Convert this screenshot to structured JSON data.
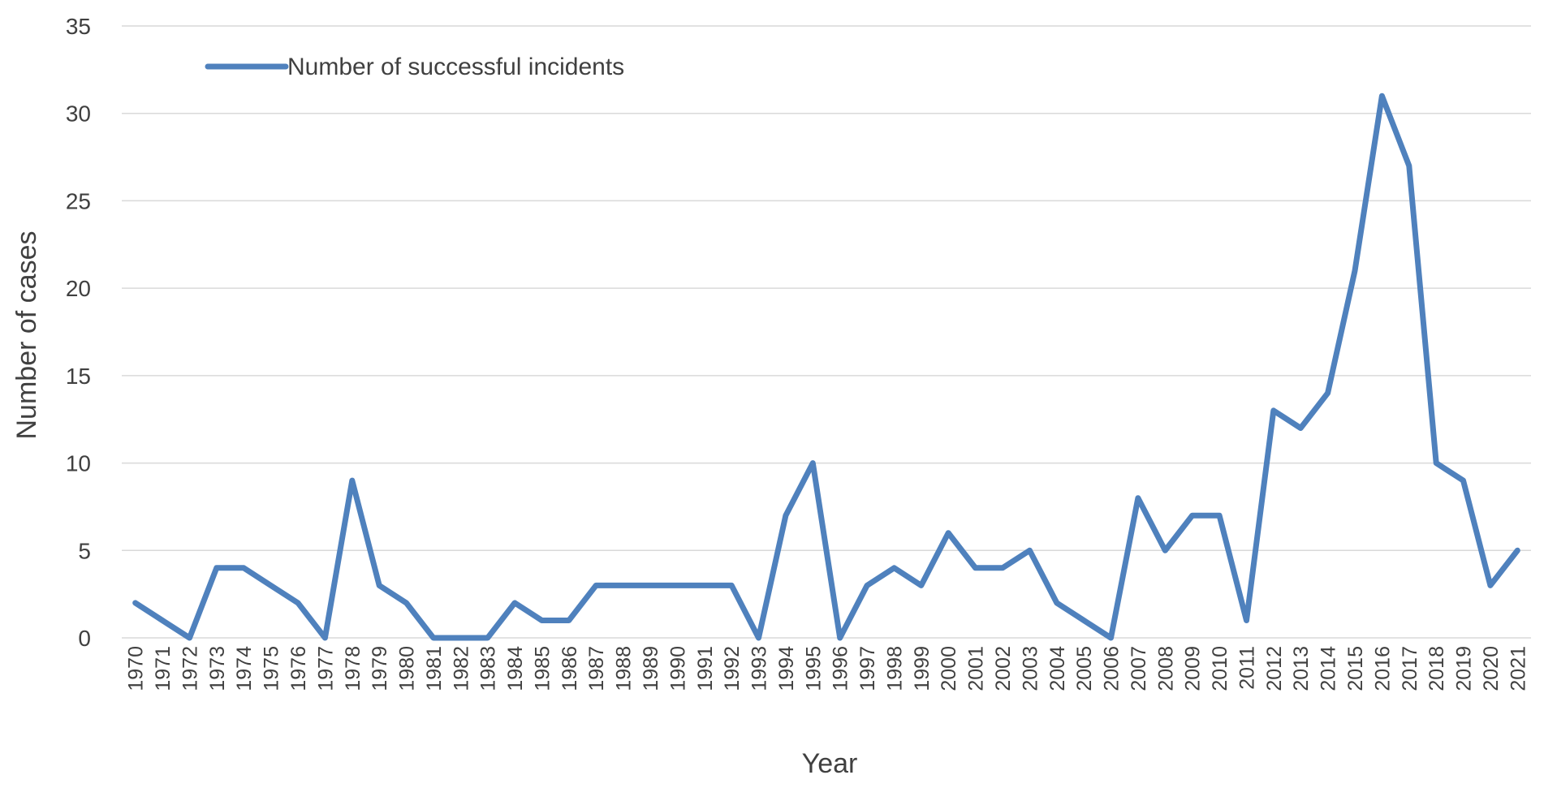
{
  "chart_data": {
    "type": "line",
    "xlabel": "Year",
    "ylabel": "Number of cases",
    "ylim": [
      0,
      35
    ],
    "yticks": [
      0,
      5,
      10,
      15,
      20,
      25,
      30,
      35
    ],
    "grid": true,
    "legend_position": "top-left",
    "categories": [
      "1970",
      "1971",
      "1972",
      "1973",
      "1974",
      "1975",
      "1976",
      "1977",
      "1978",
      "1979",
      "1980",
      "1981",
      "1982",
      "1983",
      "1984",
      "1985",
      "1986",
      "1987",
      "1988",
      "1989",
      "1990",
      "1991",
      "1992",
      "1993",
      "1994",
      "1995",
      "1996",
      "1997",
      "1998",
      "1999",
      "2000",
      "2001",
      "2002",
      "2003",
      "2004",
      "2005",
      "2006",
      "2007",
      "2008",
      "2009",
      "2010",
      "2011",
      "2012",
      "2013",
      "2014",
      "2015",
      "2016",
      "2017",
      "2018",
      "2019",
      "2020",
      "2021"
    ],
    "series": [
      {
        "name": "Number of successful incidents",
        "color": "#4f81bd",
        "values": [
          2,
          1,
          0,
          4,
          4,
          3,
          2,
          0,
          9,
          3,
          2,
          0,
          0,
          0,
          2,
          1,
          1,
          3,
          3,
          3,
          3,
          3,
          3,
          0,
          7,
          10,
          0,
          3,
          4,
          3,
          6,
          4,
          4,
          5,
          2,
          1,
          0,
          8,
          5,
          7,
          7,
          1,
          13,
          12,
          14,
          21,
          31,
          27,
          10,
          9,
          3,
          5
        ]
      }
    ]
  }
}
